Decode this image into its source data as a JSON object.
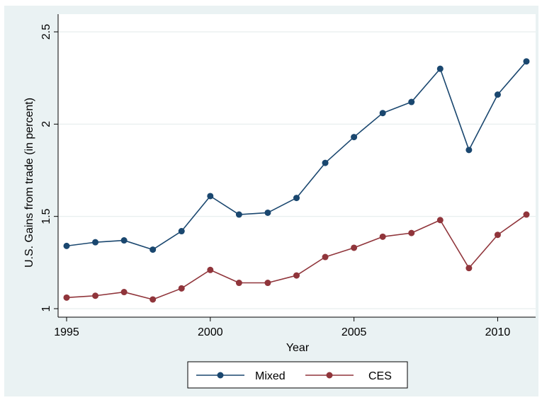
{
  "chart_data": {
    "type": "line",
    "xlabel": "Year",
    "ylabel": "U.S. Gains from trade (in percent)",
    "xlim": [
      1995,
      2011
    ],
    "ylim": [
      1,
      2.5
    ],
    "xticks": [
      "1995",
      "2000",
      "2005",
      "2010"
    ],
    "yticks": [
      "1",
      "1.5",
      "2",
      "2.5"
    ],
    "grid": true,
    "legend_position": "bottom",
    "x": [
      1995,
      1996,
      1997,
      1998,
      1999,
      2000,
      2001,
      2002,
      2003,
      2004,
      2005,
      2006,
      2007,
      2008,
      2009,
      2010,
      2011
    ],
    "series": [
      {
        "name": "Mixed",
        "color": "#1a476f",
        "values": [
          1.34,
          1.36,
          1.37,
          1.32,
          1.42,
          1.61,
          1.51,
          1.52,
          1.6,
          1.79,
          1.93,
          2.06,
          2.12,
          2.3,
          1.86,
          2.16,
          2.34
        ]
      },
      {
        "name": "CES",
        "color": "#90353b",
        "values": [
          1.06,
          1.07,
          1.09,
          1.05,
          1.11,
          1.21,
          1.14,
          1.14,
          1.18,
          1.28,
          1.33,
          1.39,
          1.41,
          1.48,
          1.22,
          1.4,
          1.51
        ]
      }
    ]
  }
}
